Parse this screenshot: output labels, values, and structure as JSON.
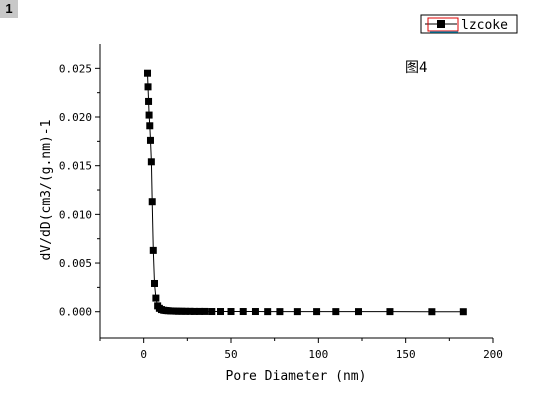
{
  "badge": "1",
  "chart_data": {
    "type": "line",
    "title": "",
    "annotation": "图4",
    "xlabel": "Pore Diameter (nm)",
    "ylabel": "dV/dD(cm3/(g.nm)-1",
    "xlim": [
      -25,
      200
    ],
    "ylim": [
      -0.0027,
      0.0275
    ],
    "xticks": [
      0,
      50,
      100,
      150,
      200
    ],
    "yticks": [
      0.0,
      0.005,
      0.01,
      0.015,
      0.02,
      0.025
    ],
    "ytick_labels": [
      "0.000",
      "0.005",
      "0.010",
      "0.015",
      "0.020",
      "0.025"
    ],
    "grid": false,
    "legend_position": "top-right",
    "series": [
      {
        "name": "lzcoke",
        "marker": "square",
        "color": "#000000",
        "x": [
          2.2,
          2.5,
          2.8,
          3.1,
          3.5,
          3.9,
          4.4,
          4.9,
          5.5,
          6.2,
          7.0,
          8.0,
          9.0,
          10.2,
          11.5,
          12.8,
          14.0,
          15.5,
          17.0,
          18.5,
          20.0,
          22.0,
          24.0,
          26.5,
          29.0,
          32.0,
          35.0,
          39.0,
          44.0,
          50.0,
          57.0,
          64.0,
          71.0,
          78.0,
          88.0,
          99.0,
          110.0,
          123.0,
          141.0,
          165.0,
          183.0
        ],
        "y": [
          0.0245,
          0.0231,
          0.0216,
          0.0202,
          0.0191,
          0.0176,
          0.0154,
          0.0113,
          0.0063,
          0.0029,
          0.0014,
          0.0006,
          0.00035,
          0.00022,
          0.00015,
          0.00012,
          0.0001,
          8e-05,
          7e-05,
          6e-05,
          5e-05,
          5e-05,
          4e-05,
          4e-05,
          3e-05,
          3e-05,
          3e-05,
          2e-05,
          2e-05,
          2e-05,
          2e-05,
          2e-05,
          1e-05,
          1e-05,
          1e-05,
          1e-05,
          1e-05,
          1e-05,
          1e-05,
          0.0,
          0.0
        ]
      }
    ]
  }
}
